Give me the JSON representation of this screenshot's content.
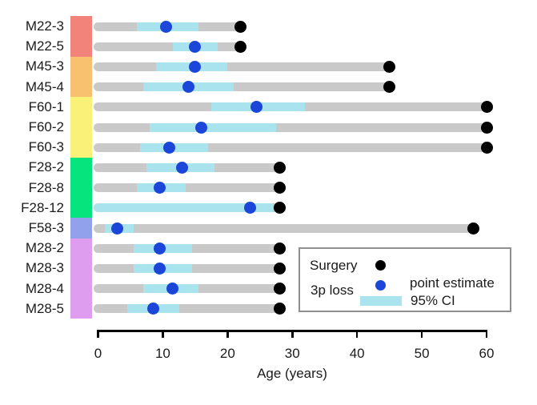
{
  "chart_data": {
    "type": "bar",
    "orientation": "horizontal",
    "title": "",
    "xlabel": "Age (years)",
    "ylabel": "",
    "xlim": [
      0,
      60
    ],
    "x_ticks": [
      0,
      10,
      20,
      30,
      40,
      50,
      60
    ],
    "grid": false,
    "legend_position": "inside-bottom-right",
    "categories": [
      "M22-3",
      "M22-5",
      "M45-3",
      "M45-4",
      "F60-1",
      "F60-2",
      "F60-3",
      "F28-2",
      "F28-8",
      "F28-12",
      "F58-3",
      "M28-2",
      "M28-3",
      "M28-4",
      "M28-5"
    ],
    "series": [
      {
        "name": "surgery_age",
        "values": [
          22,
          22,
          45,
          45,
          60,
          60,
          60,
          28,
          28,
          28,
          58,
          28,
          28,
          28,
          28
        ]
      },
      {
        "name": "3p_loss_point_estimate",
        "values": [
          10.5,
          15,
          15,
          14,
          24.5,
          16,
          11,
          13,
          9.5,
          23.5,
          3,
          9.5,
          9.5,
          11.5,
          8.5
        ]
      },
      {
        "name": "ci95_low",
        "values": [
          6,
          11.5,
          9,
          7,
          17.5,
          8,
          6.5,
          7.5,
          6,
          0,
          1,
          5.5,
          5.5,
          7,
          4.5
        ]
      },
      {
        "name": "ci95_high",
        "values": [
          15.5,
          18.5,
          20,
          21,
          32,
          27.5,
          17,
          18,
          13.5,
          27,
          5.5,
          14.5,
          14.5,
          15.5,
          12.5
        ]
      }
    ],
    "groups": [
      {
        "name": "M22",
        "color": "#F2837B",
        "first_row": 0,
        "last_row": 1
      },
      {
        "name": "M45",
        "color": "#F8C16F",
        "first_row": 2,
        "last_row": 3
      },
      {
        "name": "F60",
        "color": "#FAF178",
        "first_row": 4,
        "last_row": 6
      },
      {
        "name": "F28",
        "color": "#06E57D",
        "first_row": 7,
        "last_row": 9
      },
      {
        "name": "F58",
        "color": "#91A1EB",
        "first_row": 10,
        "last_row": 10
      },
      {
        "name": "M28",
        "color": "#DE9DEF",
        "first_row": 11,
        "last_row": 14
      }
    ],
    "colors": {
      "bar": "#C9C9C9",
      "ci": "#A9E3EE",
      "point": "#1B46D7",
      "surgery": "#000000",
      "axis": "#000000"
    },
    "legend": {
      "surgery_label": "Surgery",
      "loss_label": "3p loss",
      "point_label": "point estimate",
      "ci_label": "95% CI"
    }
  }
}
